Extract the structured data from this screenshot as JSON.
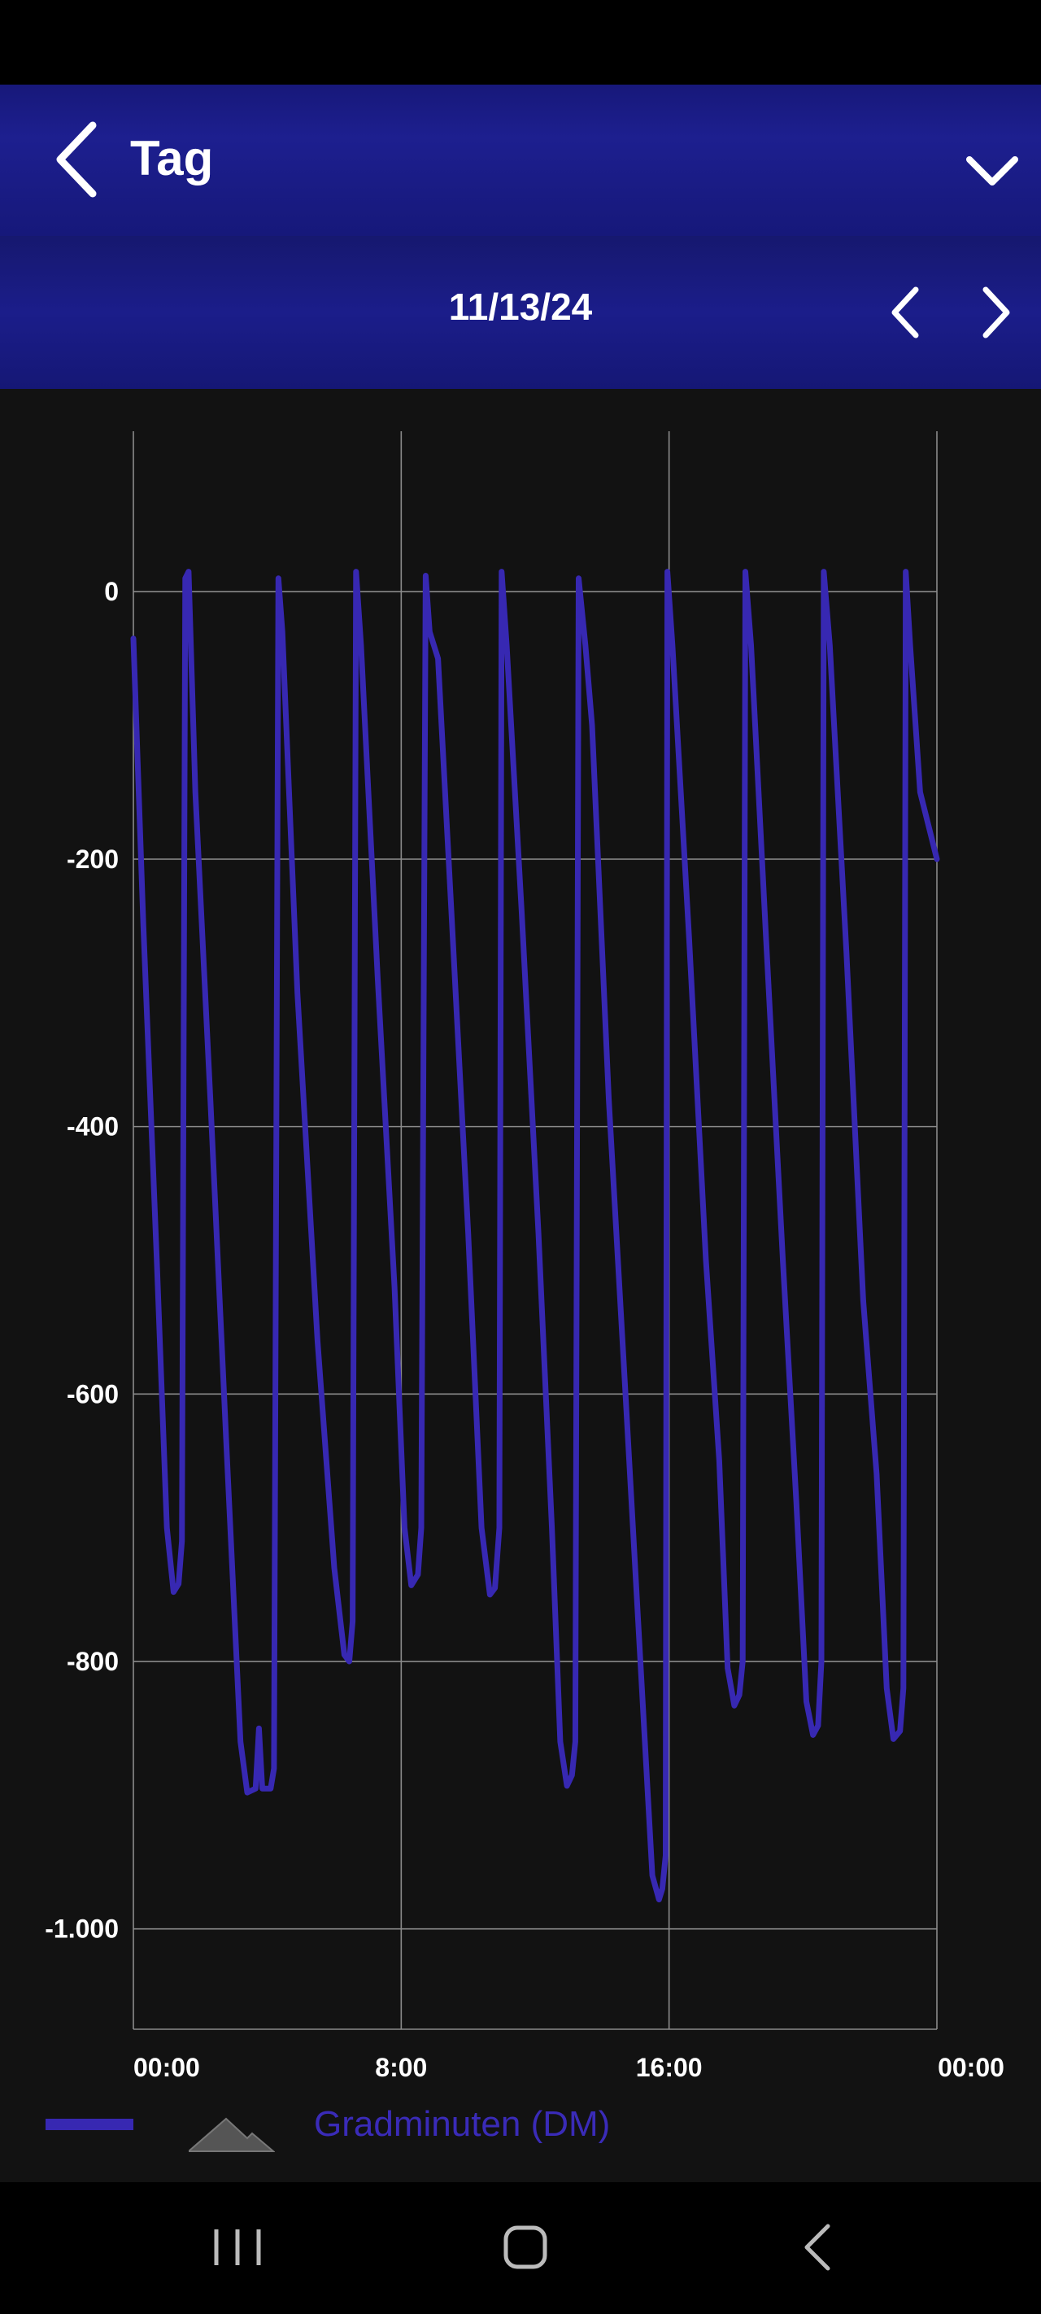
{
  "header": {
    "title": "Tag"
  },
  "date_nav": {
    "date": "11/13/24"
  },
  "legend": {
    "label": "Gradminuten (DM)"
  },
  "colors": {
    "series": "#3728b2",
    "header": "#1d1f8f",
    "background": "#121212"
  },
  "icons": {
    "back": "chevron-left-icon",
    "dropdown": "chevron-down-icon",
    "prev": "chevron-left-icon",
    "next": "chevron-right-icon"
  },
  "chart_data": {
    "type": "line",
    "title": "",
    "xlabel": "",
    "ylabel": "",
    "x_unit": "hours",
    "xlim": [
      0,
      24
    ],
    "ylim": [
      -1075,
      120
    ],
    "x_ticks": [
      0,
      8,
      16,
      24
    ],
    "x_tick_labels": [
      "00:00",
      "8:00",
      "16:00",
      "00:00"
    ],
    "y_ticks": [
      0,
      -200,
      -400,
      -600,
      -800,
      -1000
    ],
    "y_tick_labels": [
      "0",
      "-200",
      "-400",
      "-600",
      "-800",
      "-1.000"
    ],
    "grid": true,
    "legend_position": "bottom-left",
    "series": [
      {
        "name": "Gradminuten (DM)",
        "points": [
          [
            0.0,
            -35
          ],
          [
            0.3,
            -250
          ],
          [
            0.7,
            -500
          ],
          [
            1.0,
            -700
          ],
          [
            1.2,
            -748
          ],
          [
            1.35,
            -742
          ],
          [
            1.45,
            -710
          ],
          [
            1.55,
            10
          ],
          [
            1.65,
            15
          ],
          [
            1.85,
            -150
          ],
          [
            2.3,
            -380
          ],
          [
            2.8,
            -650
          ],
          [
            3.2,
            -860
          ],
          [
            3.4,
            -898
          ],
          [
            3.65,
            -895
          ],
          [
            3.75,
            -850
          ],
          [
            3.85,
            -895
          ],
          [
            4.1,
            -895
          ],
          [
            4.2,
            -880
          ],
          [
            4.33,
            10
          ],
          [
            4.45,
            -30
          ],
          [
            4.9,
            -300
          ],
          [
            5.5,
            -560
          ],
          [
            6.0,
            -730
          ],
          [
            6.3,
            -795
          ],
          [
            6.45,
            -800
          ],
          [
            6.55,
            -770
          ],
          [
            6.65,
            15
          ],
          [
            6.8,
            -40
          ],
          [
            7.3,
            -290
          ],
          [
            7.8,
            -520
          ],
          [
            8.1,
            -700
          ],
          [
            8.3,
            -743
          ],
          [
            8.5,
            -735
          ],
          [
            8.6,
            -700
          ],
          [
            8.73,
            12
          ],
          [
            8.85,
            -30
          ],
          [
            9.1,
            -50
          ],
          [
            9.5,
            -240
          ],
          [
            10.0,
            -480
          ],
          [
            10.4,
            -700
          ],
          [
            10.65,
            -750
          ],
          [
            10.8,
            -745
          ],
          [
            10.93,
            -700
          ],
          [
            11.0,
            15
          ],
          [
            11.15,
            -40
          ],
          [
            11.6,
            -240
          ],
          [
            12.1,
            -480
          ],
          [
            12.5,
            -700
          ],
          [
            12.75,
            -860
          ],
          [
            12.95,
            -893
          ],
          [
            13.1,
            -885
          ],
          [
            13.2,
            -860
          ],
          [
            13.3,
            10
          ],
          [
            13.5,
            -40
          ],
          [
            13.7,
            -100
          ],
          [
            14.2,
            -380
          ],
          [
            14.7,
            -600
          ],
          [
            15.1,
            -780
          ],
          [
            15.5,
            -960
          ],
          [
            15.7,
            -978
          ],
          [
            15.8,
            -970
          ],
          [
            15.9,
            -945
          ],
          [
            15.95,
            15
          ],
          [
            16.1,
            -40
          ],
          [
            16.6,
            -260
          ],
          [
            17.1,
            -500
          ],
          [
            17.5,
            -650
          ],
          [
            17.75,
            -805
          ],
          [
            17.95,
            -833
          ],
          [
            18.1,
            -825
          ],
          [
            18.2,
            -800
          ],
          [
            18.28,
            15
          ],
          [
            18.45,
            -40
          ],
          [
            18.9,
            -260
          ],
          [
            19.4,
            -500
          ],
          [
            19.8,
            -680
          ],
          [
            20.1,
            -830
          ],
          [
            20.3,
            -855
          ],
          [
            20.45,
            -848
          ],
          [
            20.55,
            -800
          ],
          [
            20.62,
            15
          ],
          [
            20.8,
            -40
          ],
          [
            21.3,
            -270
          ],
          [
            21.8,
            -530
          ],
          [
            22.2,
            -660
          ],
          [
            22.5,
            -820
          ],
          [
            22.7,
            -858
          ],
          [
            22.9,
            -852
          ],
          [
            23.0,
            -820
          ],
          [
            23.07,
            15
          ],
          [
            23.2,
            -40
          ],
          [
            23.5,
            -150
          ],
          [
            24.0,
            -200
          ]
        ]
      }
    ]
  }
}
